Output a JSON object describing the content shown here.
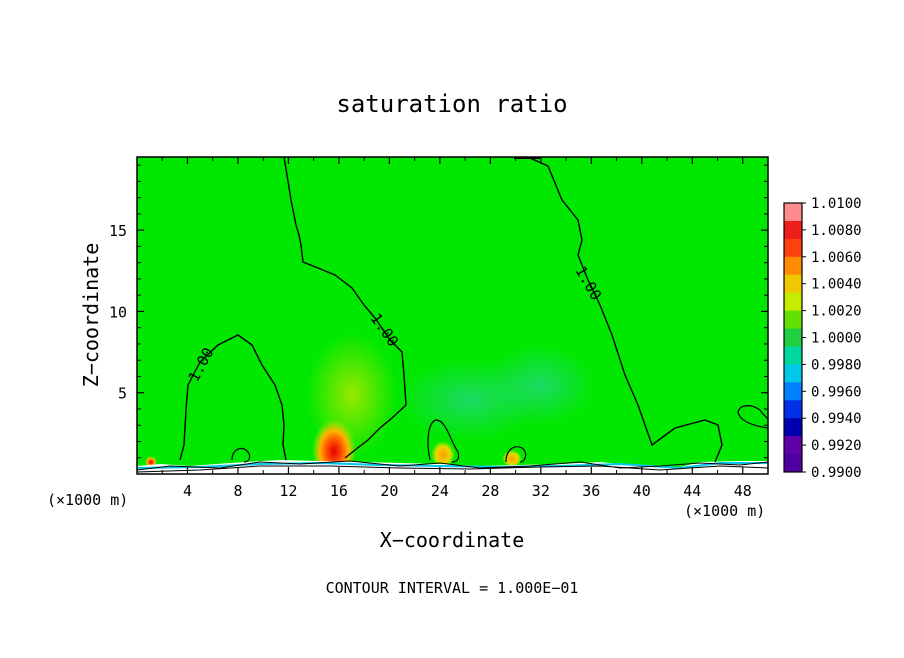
{
  "chart_data": {
    "type": "heatmap",
    "title": "saturation ratio",
    "xlabel": "X−coordinate",
    "ylabel": "Z−coordinate",
    "x_unit_left": "(×1000 m)",
    "x_unit_right": "(×1000 m)",
    "footer": "CONTOUR INTERVAL = 1.000E−01",
    "xlim": [
      0,
      50
    ],
    "ylim": [
      0,
      19.5
    ],
    "x_ticks": [
      "4",
      "8",
      "12",
      "16",
      "20",
      "24",
      "28",
      "32",
      "36",
      "40",
      "44",
      "48"
    ],
    "y_ticks": [
      "5",
      "10",
      "15"
    ],
    "contour_label": "1.00",
    "colorbar": {
      "labels": [
        "1.0100",
        "1.0080",
        "1.0060",
        "1.0040",
        "1.0020",
        "1.0000",
        "0.9980",
        "0.9960",
        "0.9940",
        "0.9920",
        "0.9900"
      ],
      "colors": [
        "#ff8c8c",
        "#f01d1d",
        "#ff4010",
        "#ff8c00",
        "#f0c800",
        "#c8ec00",
        "#64e000",
        "#20d040",
        "#00d8a0",
        "#00c8e8",
        "#0080ff",
        "#0030e8",
        "#0000b0",
        "#6000a8",
        "#5000a0"
      ]
    },
    "background_value_color": "#00e800",
    "features": [
      {
        "name": "warm-anomaly-x16",
        "x": 16,
        "z": 1.2,
        "value": 1.008
      },
      {
        "name": "warm-anomaly-x24",
        "x": 24.5,
        "z": 1.0,
        "value": 1.004
      },
      {
        "name": "warm-anomaly-x30",
        "x": 30,
        "z": 0.8,
        "value": 1.004
      },
      {
        "name": "warm-anomaly-x1",
        "x": 1.2,
        "z": 0.8,
        "value": 1.008
      }
    ]
  }
}
